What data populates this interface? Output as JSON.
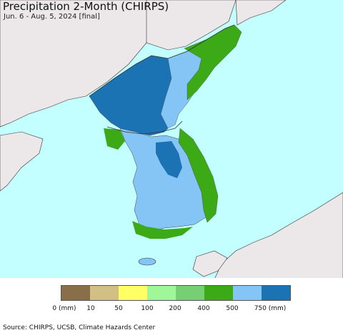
{
  "title": "Precipitation 2-Month (CHIRPS)",
  "subtitle": "Jun. 6 - Aug. 5, 2024 [final]",
  "source": "Source: CHIRPS, UCSB, Climate Hazards Center",
  "legend": {
    "colors": [
      "#8a6d49",
      "#d2bf84",
      "#ffff66",
      "#a0f79a",
      "#76cf72",
      "#3caa16",
      "#85c5f5",
      "#1b73b4"
    ],
    "ticks": [
      "0 (mm)",
      "10",
      "50",
      "100",
      "200",
      "400",
      "500",
      "750 (mm)"
    ]
  },
  "map_colors": {
    "ocean": "#c3ffff",
    "land_outside": "#ece8ea",
    "heavy_blue": "#1b73b4",
    "light_blue": "#85c5f5",
    "green": "#3caa16",
    "light_green": "#76cf72"
  }
}
